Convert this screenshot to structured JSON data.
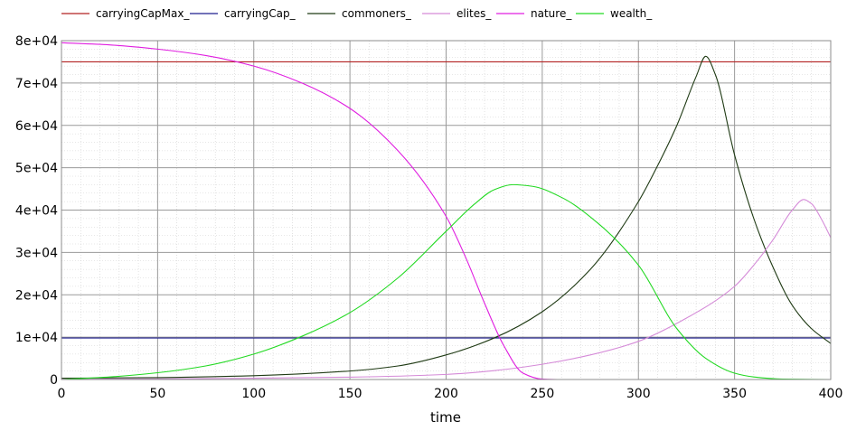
{
  "chart_data": {
    "type": "line",
    "title": "",
    "xlabel": "time",
    "ylabel": "",
    "xlim": [
      0,
      400
    ],
    "ylim": [
      0,
      80000
    ],
    "grid": true,
    "legend_position": "top",
    "x_ticks": [
      0,
      50,
      100,
      150,
      200,
      250,
      300,
      350,
      400
    ],
    "y_ticks": [
      0,
      10000,
      20000,
      30000,
      40000,
      50000,
      60000,
      70000,
      80000
    ],
    "x_tick_labels": [
      "0",
      "50",
      "100",
      "150",
      "200",
      "250",
      "300",
      "350",
      "400"
    ],
    "y_tick_labels": [
      "0",
      "1e+04",
      "2e+04",
      "3e+04",
      "4e+04",
      "5e+04",
      "6e+04",
      "7e+04",
      "8e+04"
    ],
    "series": [
      {
        "name": "carryingCapMax_",
        "color": "#b22222",
        "x": [
          0,
          400
        ],
        "y": [
          75000,
          75000
        ]
      },
      {
        "name": "carryingCap_",
        "color": "#1f1f8f",
        "x": [
          0,
          400
        ],
        "y": [
          9800,
          9800
        ]
      },
      {
        "name": "commoners_",
        "color": "#1f3a14",
        "x": [
          0,
          50,
          100,
          150,
          175,
          200,
          225,
          250,
          275,
          300,
          310,
          320,
          330,
          335,
          340,
          350,
          360,
          370,
          380,
          390,
          400
        ],
        "y": [
          300,
          450,
          900,
          2000,
          3200,
          5800,
          9800,
          16000,
          26000,
          42000,
          50500,
          60000,
          71500,
          76300,
          72000,
          53000,
          38000,
          26500,
          17500,
          12000,
          8500
        ]
      },
      {
        "name": "elites_",
        "color": "#d58bd8",
        "x": [
          0,
          50,
          100,
          150,
          200,
          225,
          250,
          275,
          300,
          325,
          350,
          360,
          370,
          380,
          386,
          390,
          395,
          400
        ],
        "y": [
          100,
          150,
          300,
          550,
          1200,
          2100,
          3600,
          5800,
          9000,
          14500,
          22000,
          27000,
          33000,
          40000,
          42500,
          41500,
          38000,
          33500
        ]
      },
      {
        "name": "nature_",
        "color": "#e01ee0",
        "x": [
          0,
          25,
          50,
          75,
          100,
          125,
          150,
          175,
          200,
          210,
          220,
          230,
          240,
          250,
          260,
          300,
          350,
          400
        ],
        "y": [
          79500,
          79000,
          78000,
          76500,
          74000,
          70000,
          64000,
          54000,
          38500,
          29000,
          18000,
          8000,
          1500,
          100,
          0,
          0,
          0,
          0
        ]
      },
      {
        "name": "wealth_",
        "color": "#22d922",
        "x": [
          0,
          25,
          50,
          75,
          100,
          125,
          150,
          175,
          200,
          215,
          225,
          235,
          245,
          260,
          280,
          300,
          320,
          335,
          350,
          360,
          375,
          400
        ],
        "y": [
          0,
          600,
          1600,
          3200,
          6000,
          10200,
          15800,
          24000,
          35000,
          41500,
          44800,
          46000,
          45600,
          43000,
          36500,
          27000,
          12000,
          5000,
          1500,
          600,
          100,
          0
        ]
      }
    ]
  }
}
